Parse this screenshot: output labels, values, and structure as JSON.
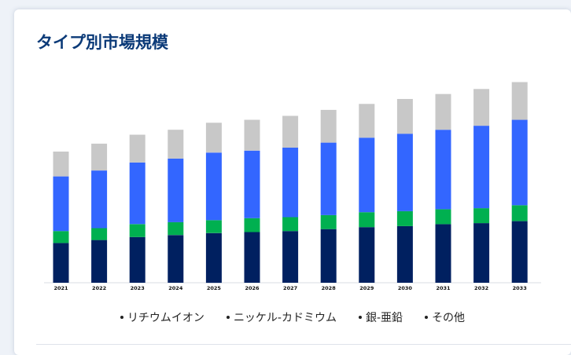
{
  "page": {
    "title": "タイプ別市場規模"
  },
  "colors": {
    "background": "#eef2f8",
    "card": "#ffffff",
    "title": "#0b3a78"
  },
  "chart_data": {
    "type": "bar",
    "stacked": true,
    "title": "タイプ別市場規模",
    "xlabel": "",
    "ylabel": "",
    "ylim": [
      0,
      100
    ],
    "grid": false,
    "legend_position": "bottom",
    "categories": [
      "2021",
      "2022",
      "2023",
      "2024",
      "2025",
      "2026",
      "2027",
      "2028",
      "2029",
      "2030",
      "2031",
      "2032",
      "2033"
    ],
    "series": [
      {
        "name": "リチウムイオン",
        "color": "#002060",
        "values": [
          20,
          21.5,
          23,
          24,
          25,
          25.5,
          26,
          27,
          28,
          28.5,
          29.5,
          30,
          31
        ]
      },
      {
        "name": "ニッケル-カドミウム",
        "color": "#00b050",
        "values": [
          6,
          6,
          6.5,
          6.5,
          6.5,
          7,
          7,
          7,
          7.5,
          7.5,
          7.5,
          7.5,
          8
        ]
      },
      {
        "name": "銀-亜鉛",
        "color": "#3366ff",
        "values": [
          27.5,
          29,
          31,
          32,
          34,
          34,
          35,
          36.5,
          37.5,
          39,
          40,
          41.5,
          43
        ]
      },
      {
        "name": "その他",
        "color": "#c8c8c8",
        "values": [
          12.5,
          13.5,
          14,
          14.5,
          15,
          15.5,
          16,
          16.5,
          17,
          17.5,
          18,
          18.5,
          19
        ]
      }
    ]
  }
}
